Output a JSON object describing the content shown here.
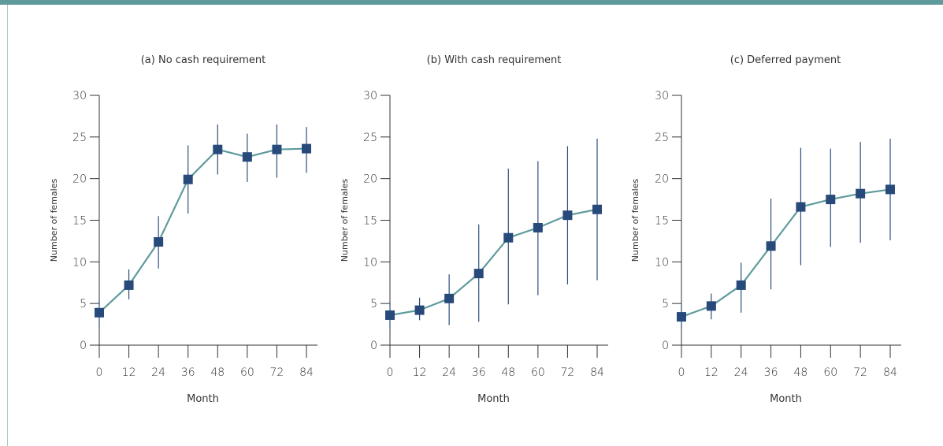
{
  "colors": {
    "accent_bar": "#5f9a9c",
    "line": "#5f9a9c",
    "marker": "#274a7a",
    "error_bar": "#2c4f7c"
  },
  "chart_data": [
    {
      "type": "line",
      "title": "(a) No cash requirement",
      "xlabel": "Month",
      "ylabel": "Number of females",
      "x": [
        0,
        12,
        24,
        36,
        48,
        60,
        72,
        84
      ],
      "y": [
        3.9,
        7.2,
        12.4,
        19.9,
        23.5,
        22.6,
        23.5,
        23.6
      ],
      "y_low": [
        2.2,
        5.5,
        9.2,
        15.8,
        20.5,
        19.6,
        20.1,
        20.7
      ],
      "y_high": [
        5.6,
        9.1,
        15.5,
        24.0,
        26.5,
        25.4,
        26.5,
        26.2
      ],
      "xticks": [
        0,
        12,
        24,
        36,
        48,
        60,
        72,
        84
      ],
      "yticks": [
        0,
        5,
        10,
        15,
        20,
        25,
        30
      ],
      "xlim": [
        0,
        84
      ],
      "ylim": [
        0,
        30
      ],
      "grid": false
    },
    {
      "type": "line",
      "title": "(b) With cash requirement",
      "xlabel": "Month",
      "ylabel": "Number of females",
      "x": [
        0,
        12,
        24,
        36,
        48,
        60,
        72,
        84
      ],
      "y": [
        3.6,
        4.2,
        5.6,
        8.6,
        12.9,
        14.1,
        15.6,
        16.3
      ],
      "y_low": [
        1.9,
        3.0,
        2.4,
        2.8,
        4.9,
        6.0,
        7.3,
        7.8
      ],
      "y_high": [
        5.3,
        5.7,
        8.5,
        14.5,
        21.2,
        22.1,
        23.9,
        24.8
      ],
      "xticks": [
        0,
        12,
        24,
        36,
        48,
        60,
        72,
        84
      ],
      "yticks": [
        0,
        5,
        10,
        15,
        20,
        25,
        30
      ],
      "xlim": [
        0,
        84
      ],
      "ylim": [
        0,
        30
      ],
      "grid": false
    },
    {
      "type": "line",
      "title": "(c) Deferred payment",
      "xlabel": "Month",
      "ylabel": "Number of females",
      "x": [
        0,
        12,
        24,
        36,
        48,
        60,
        72,
        84
      ],
      "y": [
        3.4,
        4.7,
        7.2,
        11.9,
        16.6,
        17.5,
        18.2,
        18.7
      ],
      "y_low": [
        2.0,
        3.1,
        3.9,
        6.7,
        9.6,
        11.8,
        12.3,
        12.6
      ],
      "y_high": [
        4.8,
        6.2,
        9.9,
        17.6,
        23.7,
        23.6,
        24.4,
        24.8
      ],
      "xticks": [
        0,
        12,
        24,
        36,
        48,
        60,
        72,
        84
      ],
      "yticks": [
        0,
        5,
        10,
        15,
        20,
        25,
        30
      ],
      "xlim": [
        0,
        84
      ],
      "ylim": [
        0,
        30
      ],
      "grid": false
    }
  ]
}
